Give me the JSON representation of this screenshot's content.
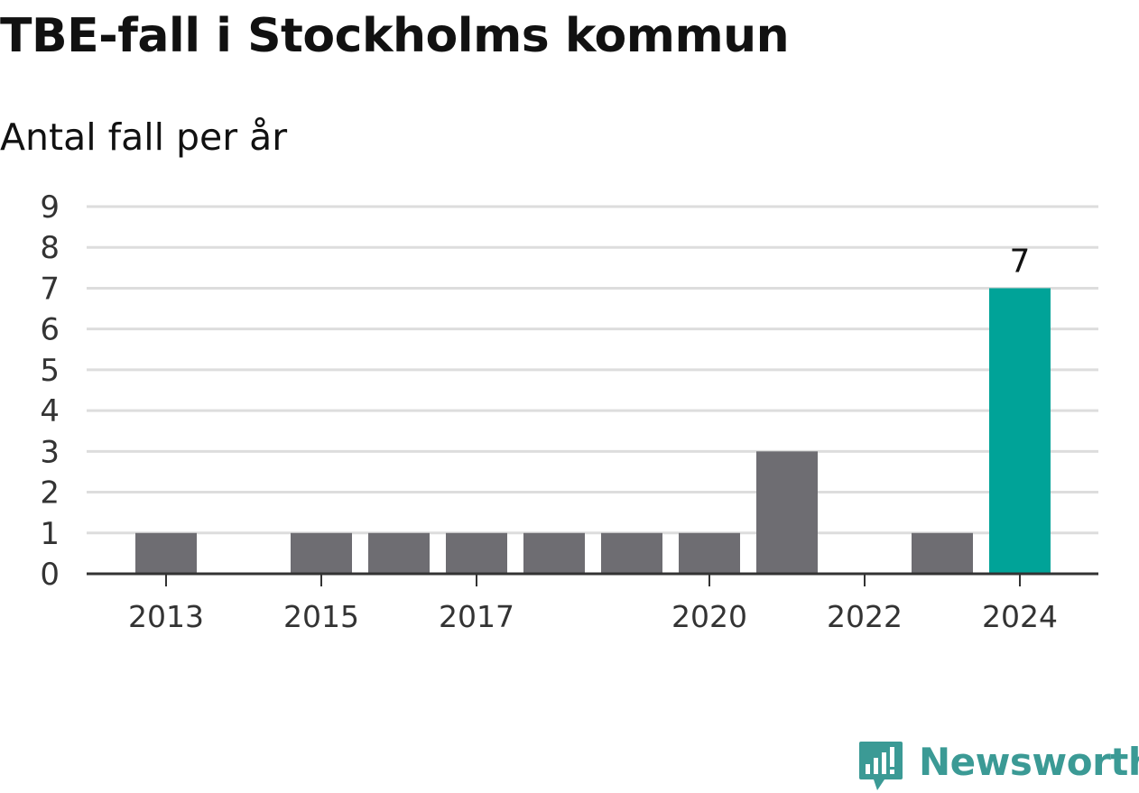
{
  "chart_data": {
    "type": "bar",
    "title": "TBE-fall i Stockholms kommun",
    "subtitle": "Antal fall per år",
    "categories": [
      "2013",
      "2014",
      "2015",
      "2016",
      "2017",
      "2018",
      "2019",
      "2020",
      "2021",
      "2022",
      "2023",
      "2024"
    ],
    "values": [
      1,
      0,
      1,
      1,
      1,
      1,
      1,
      1,
      3,
      0,
      1,
      7
    ],
    "x_tick_labels": [
      "2013",
      "2015",
      "2017",
      "2020",
      "2022",
      "2024"
    ],
    "y_ticks": [
      0,
      1,
      2,
      3,
      4,
      5,
      6,
      7,
      8,
      9
    ],
    "ylim": [
      0,
      9
    ],
    "grid": true,
    "highlight_category": "2024",
    "data_labels": [
      {
        "category": "2024",
        "label": "7"
      }
    ],
    "colors": {
      "bar": "#6e6d72",
      "highlight": "#00a398",
      "grid": "#dddddd",
      "axis": "#333333"
    }
  },
  "branding": {
    "logo_text": "Newsworthy",
    "logo_color": "#3b9a95"
  }
}
